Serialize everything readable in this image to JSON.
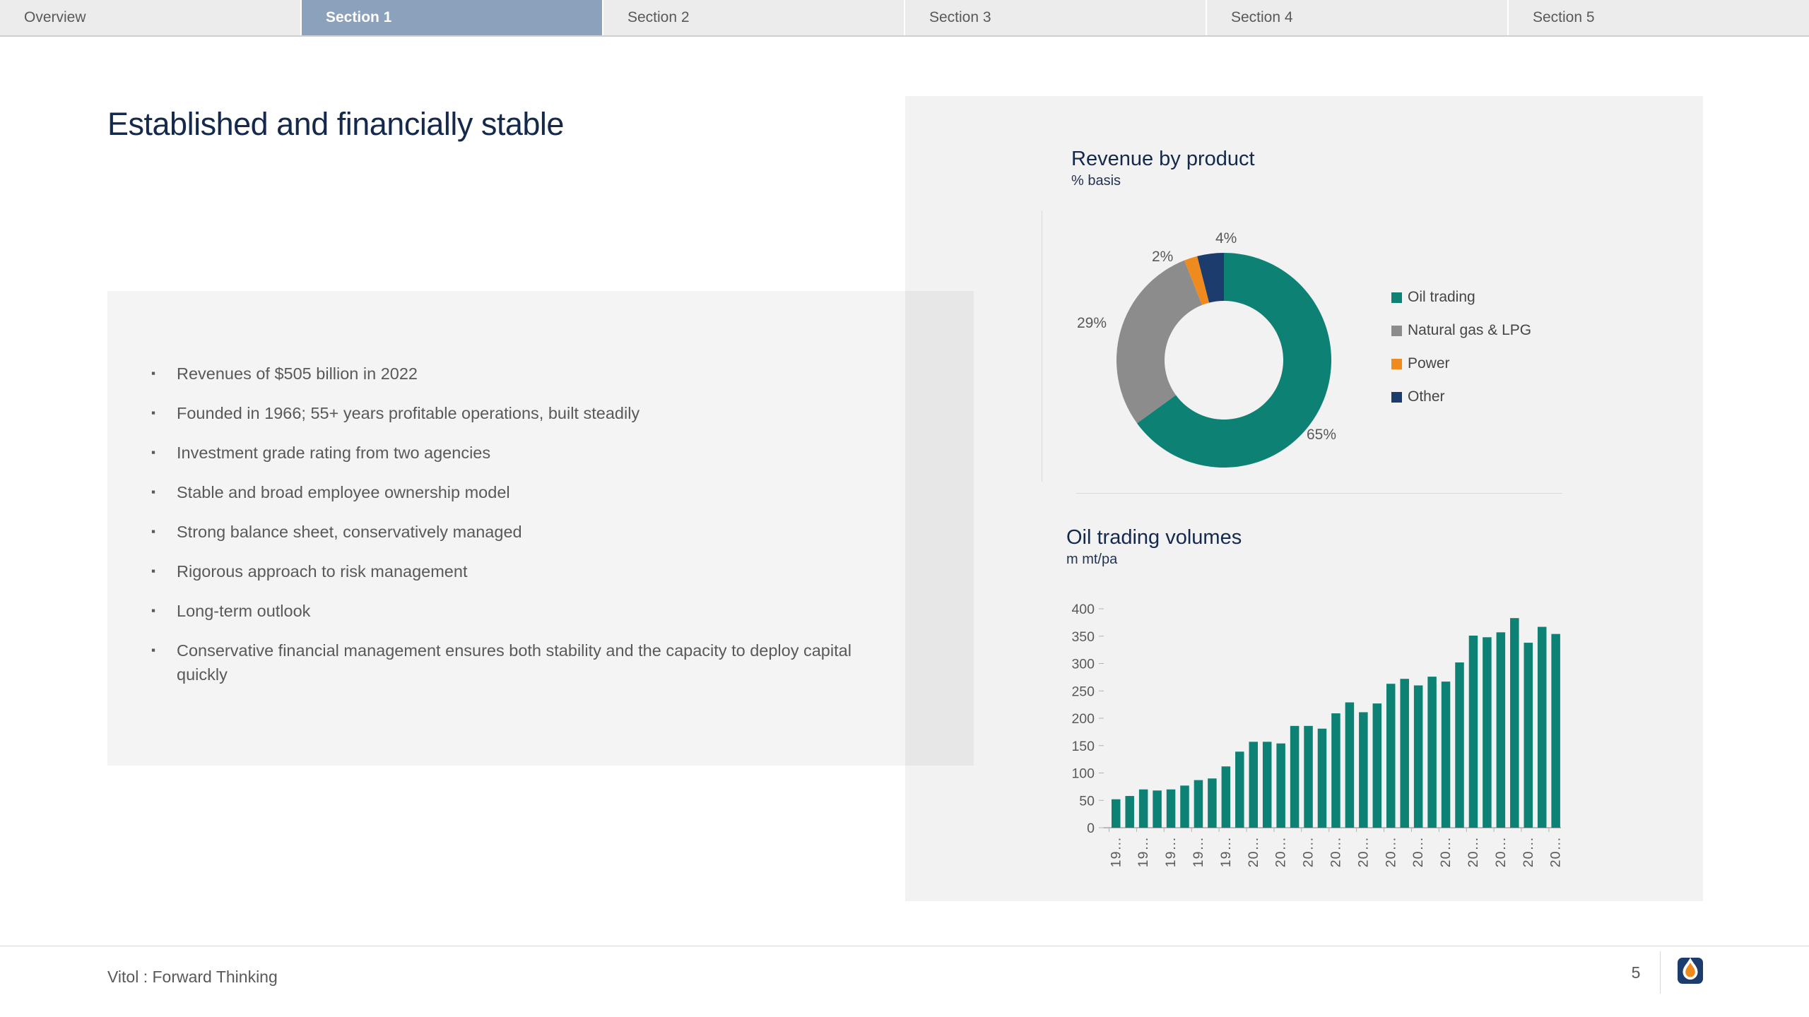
{
  "tabs": [
    {
      "label": "Overview",
      "active": false
    },
    {
      "label": "Section 1",
      "active": true
    },
    {
      "label": "Section 2",
      "active": false
    },
    {
      "label": "Section 3",
      "active": false
    },
    {
      "label": "Section 4",
      "active": false
    },
    {
      "label": "Section 5",
      "active": false
    }
  ],
  "title": "Established and financially stable",
  "bullets": [
    "Revenues of $505 billion in 2022",
    "Founded in 1966; 55+ years profitable operations, built steadily",
    "Investment grade rating from two agencies",
    "Stable and broad employee ownership model",
    "Strong balance sheet, conservatively managed",
    "Rigorous approach to risk management",
    "Long-term outlook",
    "Conservative financial management ensures both stability and the capacity to deploy capital quickly"
  ],
  "donut_chart": {
    "title": "Revenue by product",
    "subtitle": "% basis"
  },
  "bar_chart": {
    "title": "Oil trading volumes",
    "subtitle": "m mt/pa"
  },
  "chart_data": [
    {
      "type": "pie",
      "variant": "donut",
      "title": "Revenue by product",
      "subtitle": "% basis",
      "start_angle": "top",
      "direction": "clockwise",
      "legend_position": "right",
      "slices": [
        {
          "label": "Oil trading",
          "value": 65,
          "pct_label": "65%",
          "color": "#0d8173"
        },
        {
          "label": "Natural gas & LPG",
          "value": 29,
          "pct_label": "29%",
          "color": "#8c8c8c"
        },
        {
          "label": "Power",
          "value": 2,
          "pct_label": "2%",
          "color": "#ee8a1e"
        },
        {
          "label": "Other",
          "value": 4,
          "pct_label": "4%",
          "color": "#1d3c6e"
        }
      ]
    },
    {
      "type": "bar",
      "title": "Oil trading volumes",
      "ylabel": "m mt/pa",
      "ylim": [
        0,
        400
      ],
      "yticks": [
        0,
        50,
        100,
        150,
        200,
        250,
        300,
        350,
        400
      ],
      "grid": false,
      "bar_color": "#0d8173",
      "n_bars": 33,
      "values": [
        52,
        58,
        70,
        68,
        70,
        77,
        87,
        90,
        112,
        139,
        157,
        157,
        154,
        186,
        186,
        181,
        209,
        229,
        211,
        227,
        263,
        272,
        260,
        276,
        267,
        302,
        351,
        348,
        357,
        383,
        338,
        367,
        354
      ],
      "x_tick_every": 2,
      "x_tick_labels": [
        "19…",
        "19…",
        "19…",
        "19…",
        "19…",
        "20…",
        "20…",
        "20…",
        "20…",
        "20…",
        "20…",
        "20…",
        "20…",
        "20…",
        "20…",
        "20…",
        "20…"
      ]
    }
  ],
  "footer": {
    "tagline": "Vitol : Forward Thinking",
    "page_number": "5",
    "logo": "vitol-drop-logo"
  },
  "colors": {
    "teal": "#0d8173",
    "gray": "#8c8c8c",
    "orange": "#ee8a1e",
    "navy": "#1d3c6e",
    "heading_navy": "#14294b",
    "body_text": "#595959",
    "tab_active_bg": "#8ca2bc",
    "tab_inactive_bg": "#ececec",
    "panel_bg": "#f2f2f2",
    "line": "#d9d9d9"
  }
}
